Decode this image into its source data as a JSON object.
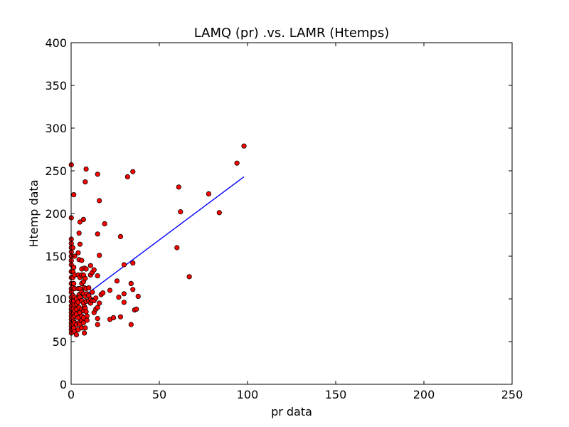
{
  "chart_data": {
    "type": "scatter",
    "title": "LAMQ (pr) .vs. LAMR (Htemps)",
    "xlabel": "pr data",
    "ylabel": "Htemp data",
    "xlim": [
      0,
      250
    ],
    "ylim": [
      0,
      400
    ],
    "xticks": [
      0,
      50,
      100,
      150,
      200,
      250
    ],
    "yticks": [
      0,
      50,
      100,
      150,
      200,
      250,
      300,
      350,
      400
    ],
    "grid": false,
    "colors": {
      "points": "#ff0000",
      "point_edge": "#000000",
      "fit_line": "#0000ff"
    },
    "series": [
      {
        "type": "scatter",
        "points": [
          [
            0.1,
            257
          ],
          [
            0.1,
            195
          ],
          [
            0.1,
            170
          ],
          [
            0.1,
            165
          ],
          [
            0.1,
            160
          ],
          [
            0.1,
            155
          ],
          [
            0.1,
            150
          ],
          [
            0.1,
            145
          ],
          [
            0.1,
            140
          ],
          [
            0.1,
            132
          ],
          [
            0.1,
            125
          ],
          [
            0.1,
            118
          ],
          [
            0.1,
            112
          ],
          [
            0.1,
            108
          ],
          [
            0.1,
            102
          ],
          [
            0.1,
            97
          ],
          [
            0.1,
            92
          ],
          [
            0.1,
            88
          ],
          [
            0.1,
            84
          ],
          [
            0.1,
            80
          ],
          [
            0.1,
            76
          ],
          [
            0.1,
            72
          ],
          [
            0.1,
            68
          ],
          [
            0.1,
            64
          ],
          [
            0.1,
            60
          ],
          [
            1,
            160
          ],
          [
            1,
            132
          ],
          [
            1,
            125
          ],
          [
            1,
            113
          ],
          [
            1,
            104
          ],
          [
            1,
            95
          ],
          [
            1,
            88
          ],
          [
            1,
            78
          ],
          [
            1,
            70
          ],
          [
            1,
            64
          ],
          [
            1.5,
            222
          ],
          [
            1.5,
            137
          ],
          [
            1.5,
            118
          ],
          [
            1.5,
            98
          ],
          [
            1.5,
            84
          ],
          [
            1.5,
            74
          ],
          [
            1.5,
            66
          ],
          [
            2,
            150
          ],
          [
            2,
            128
          ],
          [
            2,
            112
          ],
          [
            2,
            102
          ],
          [
            2,
            93
          ],
          [
            2,
            86
          ],
          [
            2,
            80
          ],
          [
            2,
            72
          ],
          [
            2,
            62
          ],
          [
            3,
            100
          ],
          [
            3,
            94
          ],
          [
            3,
            88
          ],
          [
            3,
            82
          ],
          [
            3,
            70
          ],
          [
            3,
            58
          ],
          [
            4,
            154
          ],
          [
            4,
            128
          ],
          [
            4,
            112
          ],
          [
            4,
            96
          ],
          [
            4,
            78
          ],
          [
            4,
            64
          ],
          [
            4.5,
            177
          ],
          [
            4.5,
            146
          ],
          [
            4.5,
            105
          ],
          [
            4.5,
            90
          ],
          [
            4.5,
            72
          ],
          [
            5,
            190
          ],
          [
            5,
            164
          ],
          [
            5,
            125
          ],
          [
            5,
            112
          ],
          [
            5,
            102
          ],
          [
            5,
            84
          ],
          [
            5,
            70
          ],
          [
            6,
            145
          ],
          [
            6,
            135
          ],
          [
            6,
            128
          ],
          [
            6,
            118
          ],
          [
            6,
            108
          ],
          [
            6,
            98
          ],
          [
            6,
            88
          ],
          [
            6,
            80
          ],
          [
            6,
            75
          ],
          [
            6,
            66
          ],
          [
            7,
            193
          ],
          [
            7,
            128
          ],
          [
            7,
            120
          ],
          [
            7,
            106
          ],
          [
            7,
            95
          ],
          [
            7,
            86
          ],
          [
            7,
            78
          ],
          [
            7,
            72
          ],
          [
            7.5,
            136
          ],
          [
            7.5,
            113
          ],
          [
            7.5,
            91
          ],
          [
            7.5,
            60
          ],
          [
            8,
            237
          ],
          [
            8,
            124
          ],
          [
            8,
            103
          ],
          [
            8,
            89
          ],
          [
            8,
            66
          ],
          [
            8.5,
            252
          ],
          [
            8.5,
            135
          ],
          [
            8.5,
            112
          ],
          [
            8.5,
            97
          ],
          [
            8.5,
            85
          ],
          [
            9,
            106
          ],
          [
            9,
            80
          ],
          [
            9,
            75
          ],
          [
            10,
            113
          ],
          [
            10,
            104
          ],
          [
            10,
            98
          ],
          [
            11,
            139
          ],
          [
            11,
            128
          ],
          [
            11,
            100
          ],
          [
            11,
            95
          ],
          [
            12,
            131
          ],
          [
            12,
            108
          ],
          [
            12,
            98
          ],
          [
            13,
            134
          ],
          [
            13,
            98
          ],
          [
            13,
            84
          ],
          [
            14,
            101
          ],
          [
            14,
            88
          ],
          [
            15,
            246
          ],
          [
            15,
            176
          ],
          [
            15,
            127
          ],
          [
            15,
            90
          ],
          [
            15,
            77
          ],
          [
            15,
            70
          ],
          [
            16,
            215
          ],
          [
            16,
            151
          ],
          [
            16,
            95
          ],
          [
            17,
            105
          ],
          [
            18,
            107
          ],
          [
            19,
            188
          ],
          [
            22,
            110
          ],
          [
            22,
            76
          ],
          [
            24,
            78
          ],
          [
            26,
            121
          ],
          [
            27,
            102
          ],
          [
            28,
            173
          ],
          [
            28,
            79
          ],
          [
            30,
            140
          ],
          [
            30,
            106
          ],
          [
            30,
            96
          ],
          [
            32,
            243
          ],
          [
            34,
            118
          ],
          [
            34,
            70
          ],
          [
            35,
            249
          ],
          [
            35,
            142
          ],
          [
            35,
            111
          ],
          [
            36,
            87
          ],
          [
            37,
            88
          ],
          [
            38,
            103
          ],
          [
            60,
            160
          ],
          [
            61,
            231
          ],
          [
            62,
            202
          ],
          [
            67,
            126
          ],
          [
            78,
            223
          ],
          [
            84,
            201
          ],
          [
            94,
            259
          ],
          [
            98,
            279
          ]
        ]
      },
      {
        "type": "line",
        "points": [
          [
            0,
            92
          ],
          [
            98,
            243
          ]
        ]
      }
    ]
  }
}
